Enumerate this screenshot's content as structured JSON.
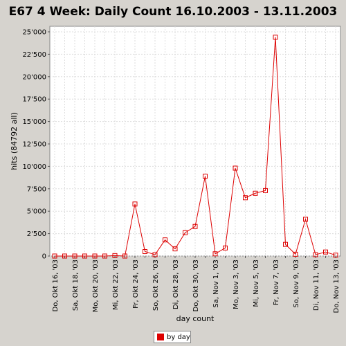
{
  "chart_data": {
    "type": "line",
    "title": "E67 4 Week: Daily Count 16.10.2003 - 13.11.2003",
    "xlabel": "day count",
    "ylabel": "hits (84792 all)",
    "ylim": [
      0,
      25000
    ],
    "yticks": [
      0,
      2500,
      5000,
      7500,
      10000,
      12500,
      15000,
      17500,
      20000,
      22500,
      25000
    ],
    "ytick_labels": [
      "0",
      "2'500",
      "5'000",
      "7'500",
      "10'000",
      "12'500",
      "15'000",
      "17'500",
      "20'000",
      "22'500",
      "25'000"
    ],
    "grid": true,
    "categories": [
      "Do, Okt 16, '03",
      "",
      "Sa, Okt 18, '03",
      "",
      "Mo, Okt 20, '03",
      "",
      "Mi, Okt 22, '03",
      "",
      "Fr, Okt 24, '03",
      "",
      "So, Okt 26, '03",
      "",
      "Di, Okt 28, '03",
      "",
      "Do, Okt 30, '03",
      "",
      "Sa, Nov 1, '03",
      "",
      "Mo, Nov 3, '03",
      "",
      "Mi, Nov 5, '03",
      "",
      "Fr, Nov 7, '03",
      "",
      "So, Nov 9, '03",
      "",
      "Di, Nov 11, '03",
      "",
      "Do, Nov 13, '03"
    ],
    "series": [
      {
        "name": "by day",
        "color": "#dd0000",
        "values": [
          0,
          0,
          0,
          0,
          0,
          0,
          50,
          0,
          5800,
          500,
          150,
          1800,
          800,
          2600,
          3300,
          8900,
          250,
          900,
          9800,
          6500,
          7000,
          7300,
          24400,
          1300,
          200,
          4100,
          150,
          450,
          100
        ]
      }
    ],
    "legend": {
      "position": "bottom-center"
    }
  }
}
